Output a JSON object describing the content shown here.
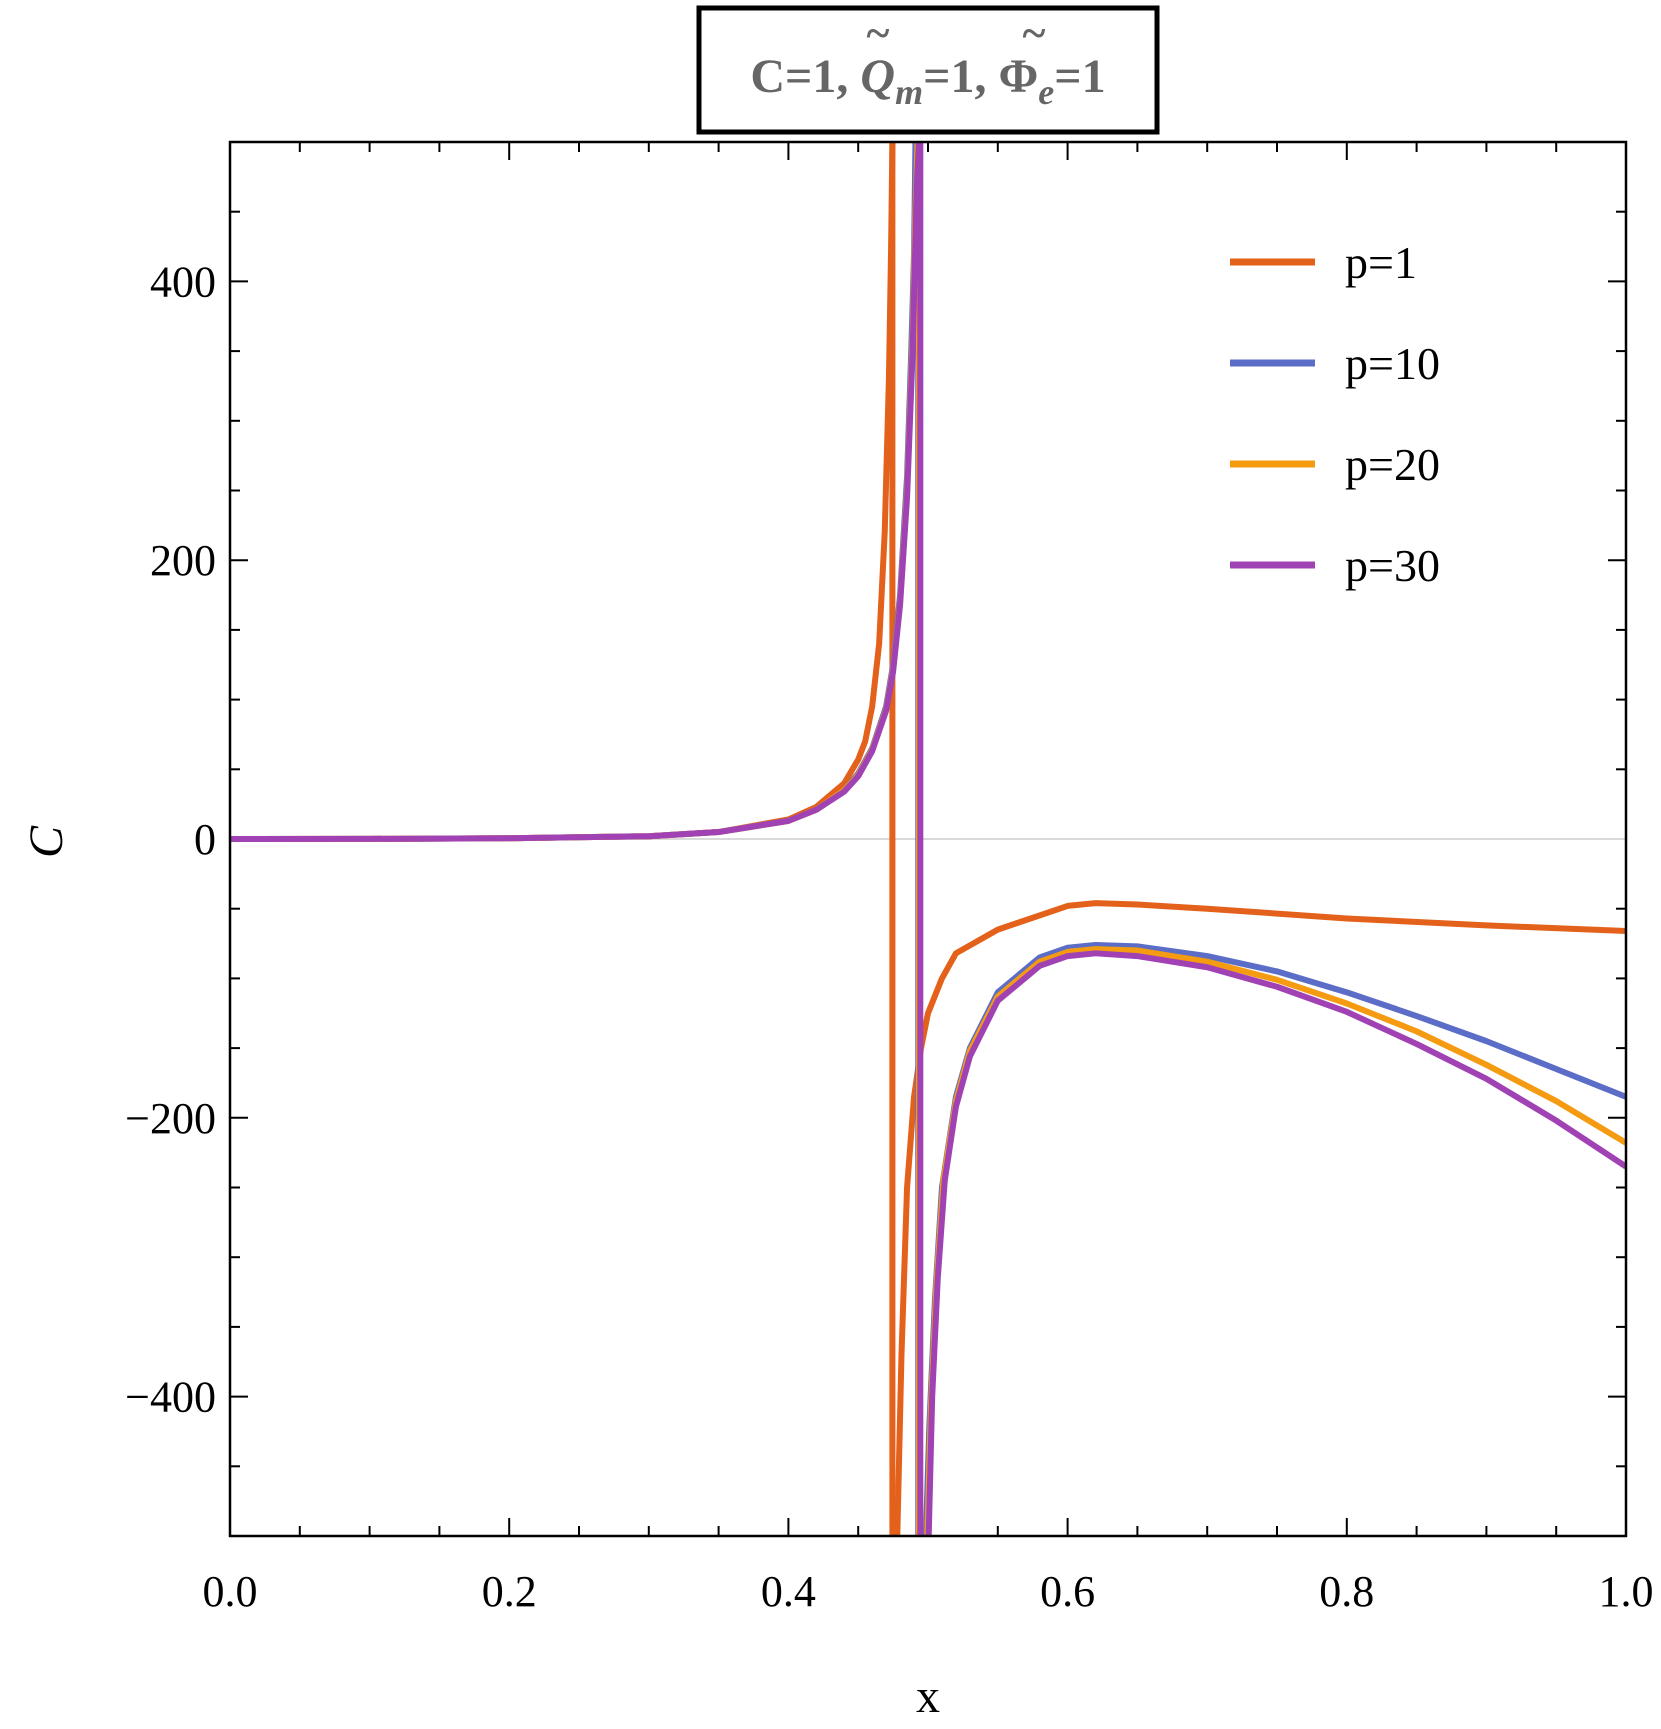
{
  "chart_data": {
    "type": "line",
    "title": {
      "prefix": "C=1, ",
      "q_symbol": "Q",
      "q_subscript": "m",
      "q_value": "=1, ",
      "phi_symbol": "Φ",
      "phi_subscript": "e",
      "phi_value": "=1",
      "tilde": "~"
    },
    "xlabel": "x",
    "ylabel": "C",
    "xlim": [
      0,
      1
    ],
    "ylim": [
      -500,
      500
    ],
    "x_ticks": [
      {
        "value": 0.0,
        "label": "0.0"
      },
      {
        "value": 0.2,
        "label": "0.2"
      },
      {
        "value": 0.4,
        "label": "0.4"
      },
      {
        "value": 0.6,
        "label": "0.6"
      },
      {
        "value": 0.8,
        "label": "0.8"
      },
      {
        "value": 1.0,
        "label": "1.0"
      }
    ],
    "y_ticks": [
      {
        "value": 400,
        "label": "400"
      },
      {
        "value": 200,
        "label": "200"
      },
      {
        "value": 0,
        "label": "0"
      },
      {
        "value": -200,
        "label": "−200"
      },
      {
        "value": -400,
        "label": "−400"
      }
    ],
    "x_minor_step": 0.05,
    "y_minor_step": 50,
    "zero_line": true,
    "grid": false,
    "legend_position": "top-right",
    "series": [
      {
        "name": "p=1",
        "color": "#e3611a",
        "branches": [
          [
            [
              0.0,
              0
            ],
            [
              0.1,
              0.1
            ],
            [
              0.2,
              0.5
            ],
            [
              0.3,
              2
            ],
            [
              0.35,
              5
            ],
            [
              0.4,
              14
            ],
            [
              0.42,
              23
            ],
            [
              0.44,
              40
            ],
            [
              0.45,
              57
            ],
            [
              0.455,
              70
            ],
            [
              0.46,
              95
            ],
            [
              0.465,
              140
            ],
            [
              0.469,
              220
            ],
            [
              0.472,
              330
            ],
            [
              0.4735,
              420
            ],
            [
              0.4745,
              500
            ]
          ],
          [
            [
              0.4745,
              500
            ],
            [
              0.4745,
              -500
            ]
          ],
          [
            [
              0.478,
              -500
            ],
            [
              0.481,
              -370
            ],
            [
              0.485,
              -250
            ],
            [
              0.49,
              -185
            ],
            [
              0.495,
              -150
            ],
            [
              0.5,
              -125
            ],
            [
              0.51,
              -100
            ],
            [
              0.52,
              -82
            ],
            [
              0.55,
              -65
            ],
            [
              0.6,
              -48
            ],
            [
              0.62,
              -46
            ],
            [
              0.65,
              -47
            ],
            [
              0.7,
              -50
            ],
            [
              0.8,
              -57
            ],
            [
              0.9,
              -62
            ],
            [
              1.0,
              -66
            ]
          ]
        ]
      },
      {
        "name": "p=10",
        "color": "#5b6dc6",
        "branches": [
          [
            [
              0.0,
              0
            ],
            [
              0.1,
              0.1
            ],
            [
              0.2,
              0.5
            ],
            [
              0.3,
              2
            ],
            [
              0.35,
              5
            ],
            [
              0.4,
              13
            ],
            [
              0.42,
              21
            ],
            [
              0.44,
              35
            ],
            [
              0.45,
              47
            ],
            [
              0.46,
              65
            ],
            [
              0.47,
              95
            ],
            [
              0.475,
              125
            ],
            [
              0.48,
              175
            ],
            [
              0.485,
              260
            ],
            [
              0.488,
              350
            ],
            [
              0.49,
              420
            ],
            [
              0.491,
              500
            ]
          ],
          [
            [
              0.493,
              500
            ],
            [
              0.493,
              -500
            ]
          ],
          [
            [
              0.4985,
              -500
            ],
            [
              0.501,
              -420
            ],
            [
              0.505,
              -330
            ],
            [
              0.51,
              -250
            ],
            [
              0.52,
              -185
            ],
            [
              0.53,
              -150
            ],
            [
              0.55,
              -110
            ],
            [
              0.58,
              -85
            ],
            [
              0.6,
              -78
            ],
            [
              0.62,
              -76
            ],
            [
              0.65,
              -77
            ],
            [
              0.7,
              -84
            ],
            [
              0.75,
              -95
            ],
            [
              0.8,
              -110
            ],
            [
              0.85,
              -127
            ],
            [
              0.9,
              -145
            ],
            [
              0.95,
              -165
            ],
            [
              1.0,
              -185
            ]
          ]
        ]
      },
      {
        "name": "p=20",
        "color": "#f59b12",
        "branches": [
          [
            [
              0.0,
              0
            ],
            [
              0.1,
              0.1
            ],
            [
              0.2,
              0.5
            ],
            [
              0.3,
              2
            ],
            [
              0.35,
              5
            ],
            [
              0.4,
              13
            ],
            [
              0.42,
              21
            ],
            [
              0.44,
              35
            ],
            [
              0.45,
              46
            ],
            [
              0.46,
              64
            ],
            [
              0.47,
              93
            ],
            [
              0.475,
              122
            ],
            [
              0.48,
              170
            ],
            [
              0.485,
              250
            ],
            [
              0.489,
              360
            ],
            [
              0.491,
              450
            ],
            [
              0.4925,
              500
            ]
          ],
          [
            [
              0.4935,
              500
            ],
            [
              0.4935,
              -500
            ]
          ],
          [
            [
              0.4995,
              -500
            ],
            [
              0.502,
              -410
            ],
            [
              0.506,
              -320
            ],
            [
              0.511,
              -245
            ],
            [
              0.52,
              -188
            ],
            [
              0.53,
              -152
            ],
            [
              0.55,
              -113
            ],
            [
              0.58,
              -88
            ],
            [
              0.6,
              -81
            ],
            [
              0.62,
              -79
            ],
            [
              0.65,
              -80
            ],
            [
              0.7,
              -88
            ],
            [
              0.75,
              -101
            ],
            [
              0.8,
              -118
            ],
            [
              0.85,
              -138
            ],
            [
              0.9,
              -162
            ],
            [
              0.95,
              -188
            ],
            [
              1.0,
              -218
            ]
          ]
        ]
      },
      {
        "name": "p=30",
        "color": "#a142b4",
        "branches": [
          [
            [
              0.0,
              0
            ],
            [
              0.1,
              0.1
            ],
            [
              0.2,
              0.5
            ],
            [
              0.3,
              2
            ],
            [
              0.35,
              5
            ],
            [
              0.4,
              13
            ],
            [
              0.42,
              21
            ],
            [
              0.44,
              34
            ],
            [
              0.45,
              45
            ],
            [
              0.46,
              63
            ],
            [
              0.47,
              92
            ],
            [
              0.475,
              120
            ],
            [
              0.48,
              168
            ],
            [
              0.485,
              245
            ],
            [
              0.489,
              350
            ],
            [
              0.492,
              470
            ],
            [
              0.4935,
              500
            ]
          ],
          [
            [
              0.4945,
              500
            ],
            [
              0.4945,
              -500
            ]
          ],
          [
            [
              0.5005,
              -500
            ],
            [
              0.503,
              -400
            ],
            [
              0.507,
              -315
            ],
            [
              0.512,
              -245
            ],
            [
              0.52,
              -192
            ],
            [
              0.53,
              -156
            ],
            [
              0.55,
              -116
            ],
            [
              0.58,
              -91
            ],
            [
              0.6,
              -84
            ],
            [
              0.62,
              -82
            ],
            [
              0.65,
              -84
            ],
            [
              0.7,
              -92
            ],
            [
              0.75,
              -106
            ],
            [
              0.8,
              -124
            ],
            [
              0.85,
              -147
            ],
            [
              0.9,
              -172
            ],
            [
              0.95,
              -202
            ],
            [
              1.0,
              -235
            ]
          ]
        ]
      }
    ]
  }
}
